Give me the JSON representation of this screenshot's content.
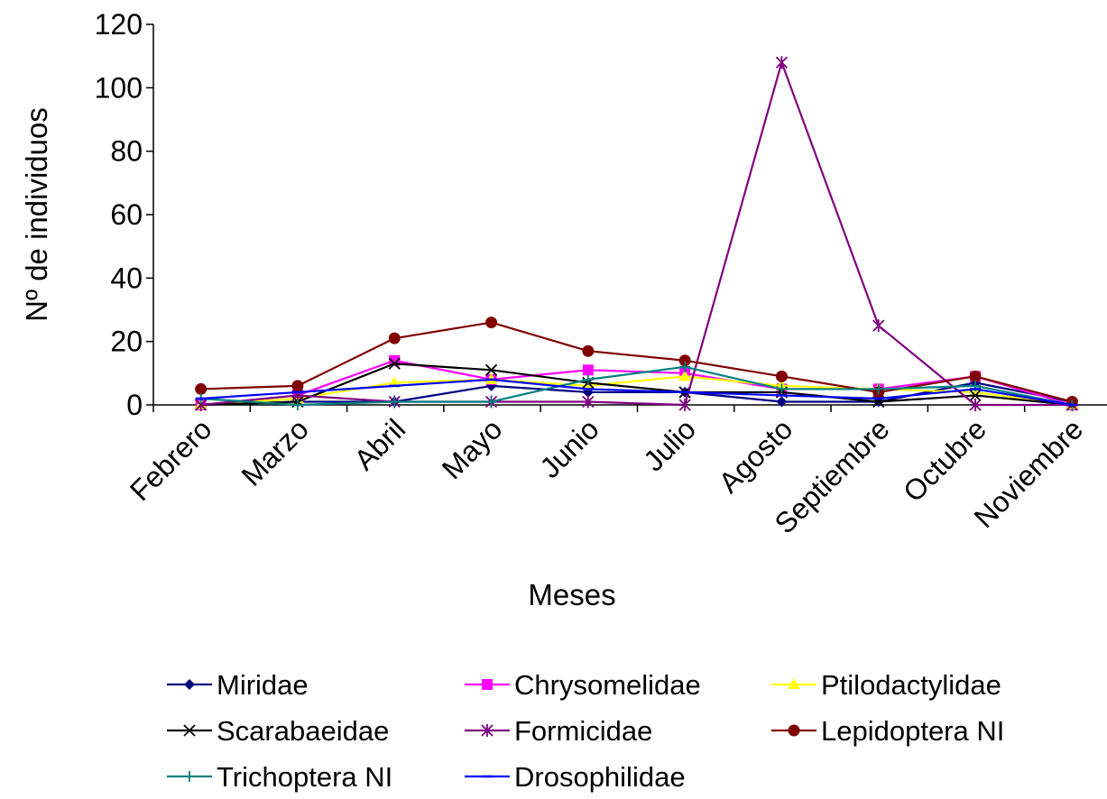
{
  "chart_data": {
    "type": "line",
    "title": "",
    "xlabel": "Meses",
    "ylabel": "Nº de individuos",
    "ylim": [
      0,
      120
    ],
    "yticks": [
      "0",
      "20",
      "40",
      "60",
      "80",
      "100",
      "120"
    ],
    "categories": [
      "Febrero",
      "Marzo",
      "Abril",
      "Mayo",
      "Junio",
      "Julio",
      "Agosto",
      "Septiembre",
      "Octubre",
      "Noviembre"
    ],
    "grid": false,
    "legend_position": "bottom",
    "series": [
      {
        "name": "Miridae",
        "color": "#000080",
        "marker": "diamond",
        "values": [
          0,
          1,
          1,
          6,
          4,
          4,
          1,
          1,
          7,
          1
        ]
      },
      {
        "name": "Chrysomelidae",
        "color": "#ff00ff",
        "marker": "square",
        "values": [
          0,
          3,
          14,
          8,
          11,
          10,
          5,
          5,
          9,
          0
        ]
      },
      {
        "name": "Ptilodactylidae",
        "color": "#ffff00",
        "marker": "triangle",
        "values": [
          0,
          2,
          7,
          8,
          6,
          9,
          6,
          5,
          4,
          0
        ]
      },
      {
        "name": "Scarabaeidae",
        "color": "#000000",
        "marker": "x",
        "values": [
          0,
          1,
          13,
          11,
          7,
          4,
          4,
          1,
          3,
          0
        ]
      },
      {
        "name": "Formicidae",
        "color": "#800080",
        "marker": "asterisk",
        "values": [
          0,
          3,
          1,
          1,
          1,
          0,
          108,
          25,
          0,
          0
        ]
      },
      {
        "name": "Lepidoptera NI",
        "color": "#800000",
        "marker": "circle",
        "values": [
          5,
          6,
          21,
          26,
          17,
          14,
          9,
          4,
          9,
          1
        ]
      },
      {
        "name": "Trichoptera NI",
        "color": "#008080",
        "marker": "plus",
        "values": [
          2,
          0,
          1,
          1,
          8,
          12,
          5,
          5,
          6,
          0
        ]
      },
      {
        "name": "Drosophilidae",
        "color": "#0000ff",
        "marker": "dash",
        "values": [
          2,
          4,
          6,
          8,
          5,
          4,
          3,
          2,
          5,
          0
        ]
      }
    ]
  }
}
